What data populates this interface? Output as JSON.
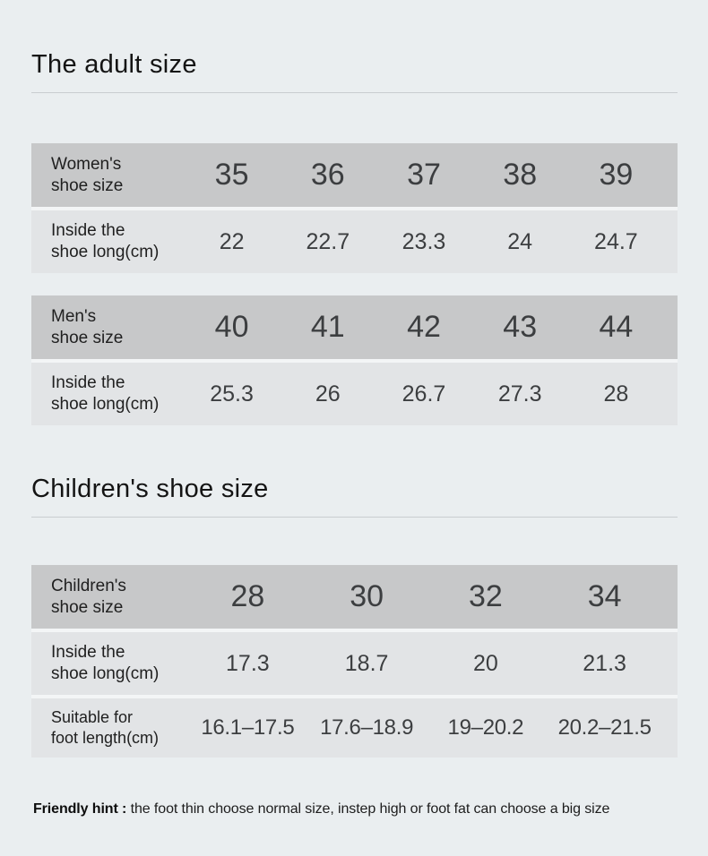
{
  "adult_section": {
    "title": "The adult size"
  },
  "children_section": {
    "title": "Children's shoe size"
  },
  "women_table": {
    "size_label": {
      "line1": "Women's",
      "line2": "shoe size"
    },
    "sizes": [
      "35",
      "36",
      "37",
      "38",
      "39"
    ],
    "inside_label": {
      "line1": "Inside the",
      "line2": "shoe long(cm)"
    },
    "inside_values": [
      "22",
      "22.7",
      "23.3",
      "24",
      "24.7"
    ]
  },
  "men_table": {
    "size_label": {
      "line1": "Men's",
      "line2": "shoe size"
    },
    "sizes": [
      "40",
      "41",
      "42",
      "43",
      "44"
    ],
    "inside_label": {
      "line1": "Inside the",
      "line2": "shoe long(cm)"
    },
    "inside_values": [
      "25.3",
      "26",
      "26.7",
      "27.3",
      "28"
    ]
  },
  "children_table": {
    "size_label": {
      "line1": "Children's",
      "line2": "shoe size"
    },
    "sizes": [
      "28",
      "30",
      "32",
      "34"
    ],
    "inside_label": {
      "line1": "Inside the",
      "line2": "shoe long(cm)"
    },
    "inside_values": [
      "17.3",
      "18.7",
      "20",
      "21.3"
    ],
    "suitable_label": {
      "line1": "Suitable for",
      "line2": "foot length(cm)"
    },
    "suitable_values": [
      "16.1–17.5",
      "17.6–18.9",
      "19–20.2",
      "20.2–21.5"
    ]
  },
  "hint": {
    "label": "Friendly hint :",
    "text": "the foot thin choose normal size, instep high or foot fat can choose a big size"
  },
  "colors": {
    "page_bg": "#eaeef0",
    "header_row_bg": "#c7c8c9",
    "data_row_bg": "#e2e4e6",
    "row_gap": "#f3f5f6",
    "divider": "#c9cdd0",
    "title_text": "#141414",
    "number_text": "#3c3e40"
  }
}
